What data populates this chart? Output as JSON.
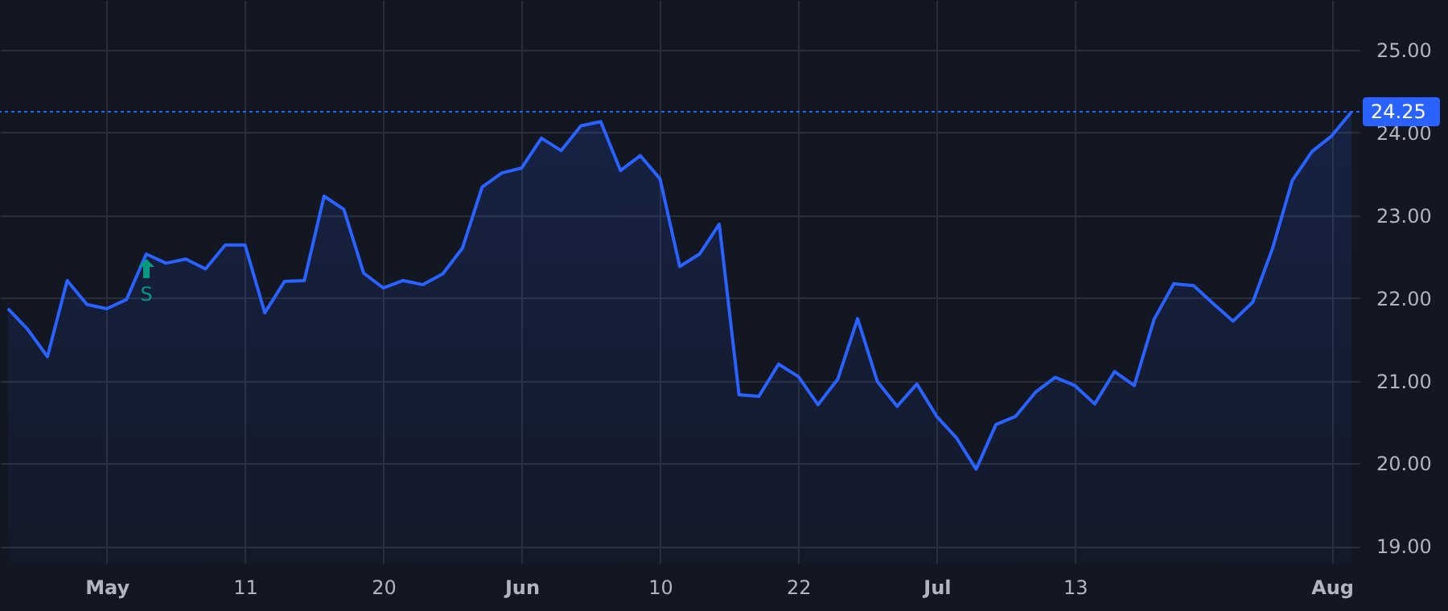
{
  "chart_data": {
    "type": "area",
    "categories": [
      null,
      null,
      null,
      null,
      null,
      "May",
      null,
      null,
      null,
      null,
      null,
      null,
      "11",
      null,
      null,
      null,
      null,
      null,
      null,
      "20",
      null,
      null,
      null,
      null,
      null,
      null,
      "Jun",
      null,
      null,
      null,
      null,
      null,
      null,
      "10",
      null,
      null,
      null,
      null,
      null,
      null,
      "22",
      null,
      null,
      null,
      null,
      null,
      null,
      "Jul",
      null,
      null,
      null,
      null,
      null,
      null,
      "13",
      null,
      null,
      null,
      null,
      null,
      null,
      null,
      null,
      null,
      null,
      null,
      null,
      "Aug",
      null
    ],
    "series": [
      {
        "color": "#2962ff",
        "values": [
          21.87,
          21.62,
          21.29,
          22.21,
          21.92,
          21.87,
          21.98,
          22.53,
          22.42,
          22.47,
          22.35,
          22.64,
          22.64,
          21.82,
          22.2,
          22.21,
          23.23,
          23.07,
          22.3,
          22.12,
          22.21,
          22.16,
          22.29,
          22.6,
          23.34,
          23.51,
          23.57,
          23.93,
          23.78,
          24.08,
          24.13,
          23.54,
          23.72,
          23.44,
          22.38,
          22.53,
          22.89,
          20.83,
          20.81,
          21.2,
          21.05,
          20.71,
          21.02,
          21.75,
          20.99,
          20.69,
          20.96,
          20.57,
          20.31,
          19.93,
          20.47,
          20.57,
          20.86,
          21.04,
          20.94,
          20.72,
          21.11,
          20.94,
          21.74,
          22.17,
          22.15,
          21.93,
          21.72,
          21.95,
          22.6,
          23.42,
          23.77,
          23.96,
          24.25
        ]
      }
    ],
    "ylim": [
      18.8,
      25.6
    ],
    "yticks": [
      {
        "value": 19,
        "label": "19.00"
      },
      {
        "value": 20,
        "label": "20.00"
      },
      {
        "value": 21,
        "label": "21.00"
      },
      {
        "value": 22,
        "label": "22.00"
      },
      {
        "value": 23,
        "label": "23.00"
      },
      {
        "value": 24,
        "label": "24.00"
      },
      {
        "value": 25,
        "label": "25.00"
      }
    ],
    "ref_lines": [
      {
        "axis": "y",
        "value": 24.25,
        "label": "24.25",
        "color": "#2962ff",
        "line_style": "dotted"
      }
    ],
    "annotations": [
      "S"
    ],
    "grid": true,
    "marker": "none",
    "line_style": "solid"
  }
}
